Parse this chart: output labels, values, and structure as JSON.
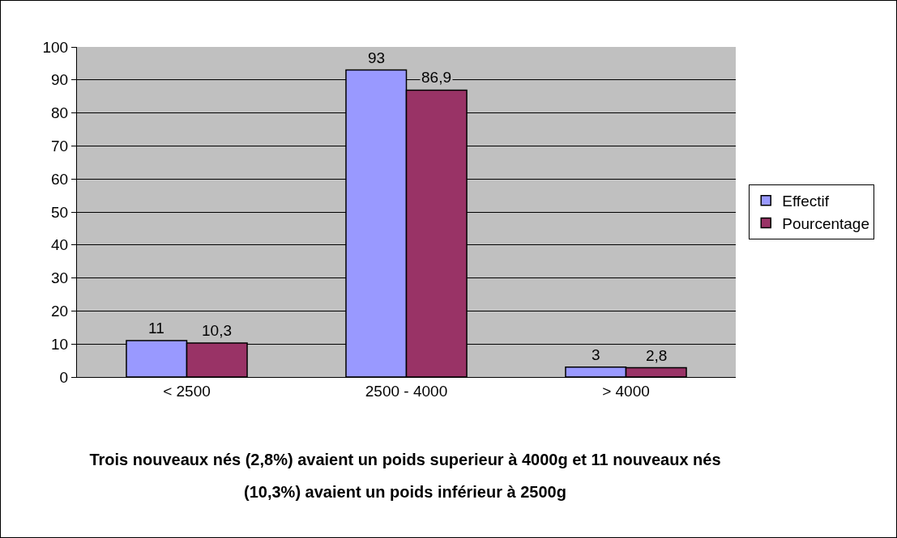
{
  "chart_data": {
    "type": "bar",
    "categories": [
      "< 2500",
      "2500 - 4000",
      "> 4000"
    ],
    "series": [
      {
        "name": "Effectif",
        "color": "#9999ff",
        "values": [
          11,
          93,
          3
        ],
        "value_labels": [
          "11",
          "93",
          "3"
        ]
      },
      {
        "name": "Pourcentage",
        "color": "#993366",
        "values": [
          10.3,
          86.9,
          2.8
        ],
        "value_labels": [
          "10,3",
          "86,9",
          "2,8"
        ]
      }
    ],
    "ylim": [
      0,
      100
    ],
    "yticks": [
      0,
      10,
      20,
      30,
      40,
      50,
      60,
      70,
      80,
      90,
      100
    ],
    "grid": "y",
    "legend": "right",
    "annotations": [
      "Trois nouveaux nés (2,8%) avaient un poids superieur à 4000g et 11 nouveaux nés (10,3%) avaient un poids inférieur à 2500g"
    ]
  }
}
